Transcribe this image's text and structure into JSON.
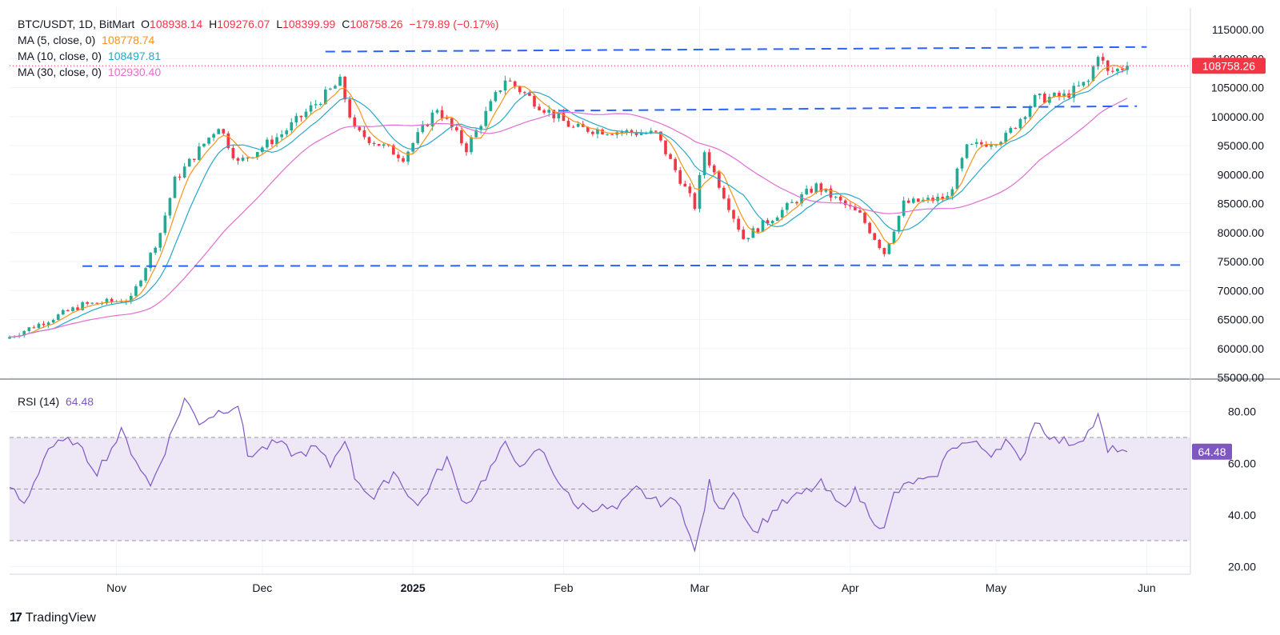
{
  "header": {
    "symbol": "BTC/USDT, 1D, BitMart",
    "o_label": "O",
    "o_value": "108938.14",
    "h_label": "H",
    "h_value": "109276.07",
    "l_label": "L",
    "l_value": "108399.99",
    "c_label": "C",
    "c_value": "108758.26",
    "change": "−179.89 (−0.17%)"
  },
  "ma_legend": [
    {
      "label": "MA (5, close, 0)",
      "value": "108778.74",
      "color": "#f7931a"
    },
    {
      "label": "MA (10, close, 0)",
      "value": "108497.81",
      "color": "#26a9c9"
    },
    {
      "label": "MA (30, close, 0)",
      "value": "102930.40",
      "color": "#e06ed1"
    }
  ],
  "colors": {
    "up": "#22ab94",
    "down": "#f23645",
    "ma5": "#f7931a",
    "ma10": "#26a9c9",
    "ma30": "#e06ed1",
    "rsi": "#7e57c2",
    "rsi_band": "#ede7f6",
    "trendline": "#2962ff",
    "grid": "#f0f3fa",
    "text": "#131722"
  },
  "price_badge": "108758.26",
  "rsi_legend": {
    "label": "RSI (14)",
    "value": "64.48"
  },
  "rsi_badge": "64.48",
  "branding": {
    "logo": "tradingview-logo",
    "text": "TradingView"
  },
  "chart_data": [
    {
      "type": "candlestick",
      "title": "BTC/USDT, 1D, BitMart",
      "ylim": [
        55000,
        115000
      ],
      "y_ticks": [
        "115000.00",
        "110000.00",
        "105000.00",
        "100000.00",
        "95000.00",
        "90000.00",
        "85000.00",
        "80000.00",
        "75000.00",
        "70000.00",
        "65000.00",
        "60000.00",
        "55000.00"
      ],
      "x_ticks": [
        "Nov",
        "Dec",
        "2025",
        "Feb",
        "Mar",
        "Apr",
        "May",
        "Jun"
      ],
      "x_tick_dates": [
        "2024-11-01",
        "2024-12-01",
        "2025-01-01",
        "2025-02-01",
        "2025-03-01",
        "2025-04-01",
        "2025-05-01",
        "2025-06-01"
      ],
      "x_range": [
        "2024-10-10",
        "2025-06-10"
      ],
      "last_close": 108758.26,
      "key_points": [
        {
          "date": "2024-10-10",
          "price": 62000
        },
        {
          "date": "2024-10-25",
          "price": 67500
        },
        {
          "date": "2024-11-04",
          "price": 68500
        },
        {
          "date": "2024-11-10",
          "price": 80000
        },
        {
          "date": "2024-11-13",
          "price": 89000
        },
        {
          "date": "2024-11-22",
          "price": 98500
        },
        {
          "date": "2024-11-26",
          "price": 92000
        },
        {
          "date": "2024-12-05",
          "price": 97000
        },
        {
          "date": "2024-12-17",
          "price": 106000
        },
        {
          "date": "2024-12-20",
          "price": 97500
        },
        {
          "date": "2024-12-30",
          "price": 93000
        },
        {
          "date": "2025-01-06",
          "price": 101500
        },
        {
          "date": "2025-01-12",
          "price": 94500
        },
        {
          "date": "2025-01-20",
          "price": 106500
        },
        {
          "date": "2025-01-27",
          "price": 102000
        },
        {
          "date": "2025-02-03",
          "price": 98000
        },
        {
          "date": "2025-02-20",
          "price": 97000
        },
        {
          "date": "2025-02-28",
          "price": 84500
        },
        {
          "date": "2025-03-02",
          "price": 94000
        },
        {
          "date": "2025-03-10",
          "price": 79000
        },
        {
          "date": "2025-03-25",
          "price": 88000
        },
        {
          "date": "2025-04-03",
          "price": 83000
        },
        {
          "date": "2025-04-08",
          "price": 76500
        },
        {
          "date": "2025-04-12",
          "price": 85000
        },
        {
          "date": "2025-04-21",
          "price": 86000
        },
        {
          "date": "2025-04-25",
          "price": 94500
        },
        {
          "date": "2025-05-03",
          "price": 96500
        },
        {
          "date": "2025-05-09",
          "price": 103000
        },
        {
          "date": "2025-05-15",
          "price": 103500
        },
        {
          "date": "2025-05-20",
          "price": 106000
        },
        {
          "date": "2025-05-22",
          "price": 111000
        },
        {
          "date": "2025-05-24",
          "price": 107500
        },
        {
          "date": "2025-05-28",
          "price": 108758
        }
      ],
      "trendlines": [
        {
          "from": {
            "date": "2024-12-14",
            "price": 111200
          },
          "to": {
            "date": "2025-06-01",
            "price": 112000
          }
        },
        {
          "from": {
            "date": "2025-01-31",
            "price": 101000
          },
          "to": {
            "date": "2025-05-30",
            "price": 101800
          }
        },
        {
          "from": {
            "date": "2024-10-25",
            "price": 74200
          },
          "to": {
            "date": "2025-06-08",
            "price": 74400
          }
        }
      ]
    },
    {
      "type": "line",
      "title": "RSI (14)",
      "ylim": [
        17,
        92
      ],
      "y_ticks": [
        "80.00",
        "60.00",
        "40.00",
        "20.00"
      ],
      "band": [
        30,
        70
      ],
      "mid": 50,
      "last_value": 64.48,
      "key_points": [
        {
          "date": "2024-10-10",
          "rsi": 51
        },
        {
          "date": "2024-10-13",
          "rsi": 44
        },
        {
          "date": "2024-10-18",
          "rsi": 66
        },
        {
          "date": "2024-10-23",
          "rsi": 69
        },
        {
          "date": "2024-10-28",
          "rsi": 57
        },
        {
          "date": "2024-11-02",
          "rsi": 72
        },
        {
          "date": "2024-11-06",
          "rsi": 58
        },
        {
          "date": "2024-11-08",
          "rsi": 51
        },
        {
          "date": "2024-11-12",
          "rsi": 70
        },
        {
          "date": "2024-11-15",
          "rsi": 85
        },
        {
          "date": "2024-11-18",
          "rsi": 76
        },
        {
          "date": "2024-11-22",
          "rsi": 80
        },
        {
          "date": "2024-11-26",
          "rsi": 83
        },
        {
          "date": "2024-11-28",
          "rsi": 63
        },
        {
          "date": "2024-12-04",
          "rsi": 68
        },
        {
          "date": "2024-12-08",
          "rsi": 63
        },
        {
          "date": "2024-12-12",
          "rsi": 66
        },
        {
          "date": "2024-12-15",
          "rsi": 59
        },
        {
          "date": "2024-12-18",
          "rsi": 70
        },
        {
          "date": "2024-12-20",
          "rsi": 55
        },
        {
          "date": "2024-12-24",
          "rsi": 46
        },
        {
          "date": "2024-12-28",
          "rsi": 57
        },
        {
          "date": "2025-01-02",
          "rsi": 43
        },
        {
          "date": "2025-01-06",
          "rsi": 56
        },
        {
          "date": "2025-01-08",
          "rsi": 62
        },
        {
          "date": "2025-01-10",
          "rsi": 51
        },
        {
          "date": "2025-01-12",
          "rsi": 44
        },
        {
          "date": "2025-01-16",
          "rsi": 55
        },
        {
          "date": "2025-01-20",
          "rsi": 67
        },
        {
          "date": "2025-01-24",
          "rsi": 58
        },
        {
          "date": "2025-01-27",
          "rsi": 66
        },
        {
          "date": "2025-02-03",
          "rsi": 44
        },
        {
          "date": "2025-02-12",
          "rsi": 42
        },
        {
          "date": "2025-02-16",
          "rsi": 50
        },
        {
          "date": "2025-02-20",
          "rsi": 45
        },
        {
          "date": "2025-02-25",
          "rsi": 45
        },
        {
          "date": "2025-02-28",
          "rsi": 25
        },
        {
          "date": "2025-03-03",
          "rsi": 52
        },
        {
          "date": "2025-03-05",
          "rsi": 41
        },
        {
          "date": "2025-03-08",
          "rsi": 50
        },
        {
          "date": "2025-03-12",
          "rsi": 33
        },
        {
          "date": "2025-03-17",
          "rsi": 43
        },
        {
          "date": "2025-03-22",
          "rsi": 48
        },
        {
          "date": "2025-03-26",
          "rsi": 52
        },
        {
          "date": "2025-03-30",
          "rsi": 43
        },
        {
          "date": "2025-04-02",
          "rsi": 49
        },
        {
          "date": "2025-04-06",
          "rsi": 38
        },
        {
          "date": "2025-04-08",
          "rsi": 34
        },
        {
          "date": "2025-04-10",
          "rsi": 48
        },
        {
          "date": "2025-04-14",
          "rsi": 53
        },
        {
          "date": "2025-04-18",
          "rsi": 53
        },
        {
          "date": "2025-04-22",
          "rsi": 67
        },
        {
          "date": "2025-04-26",
          "rsi": 68
        },
        {
          "date": "2025-04-30",
          "rsi": 64
        },
        {
          "date": "2025-05-03",
          "rsi": 69
        },
        {
          "date": "2025-05-06",
          "rsi": 60
        },
        {
          "date": "2025-05-09",
          "rsi": 77
        },
        {
          "date": "2025-05-13",
          "rsi": 69
        },
        {
          "date": "2025-05-17",
          "rsi": 68
        },
        {
          "date": "2025-05-20",
          "rsi": 72
        },
        {
          "date": "2025-05-22",
          "rsi": 78
        },
        {
          "date": "2025-05-24",
          "rsi": 64
        },
        {
          "date": "2025-05-26",
          "rsi": 66
        },
        {
          "date": "2025-05-28",
          "rsi": 64.48
        }
      ]
    }
  ]
}
